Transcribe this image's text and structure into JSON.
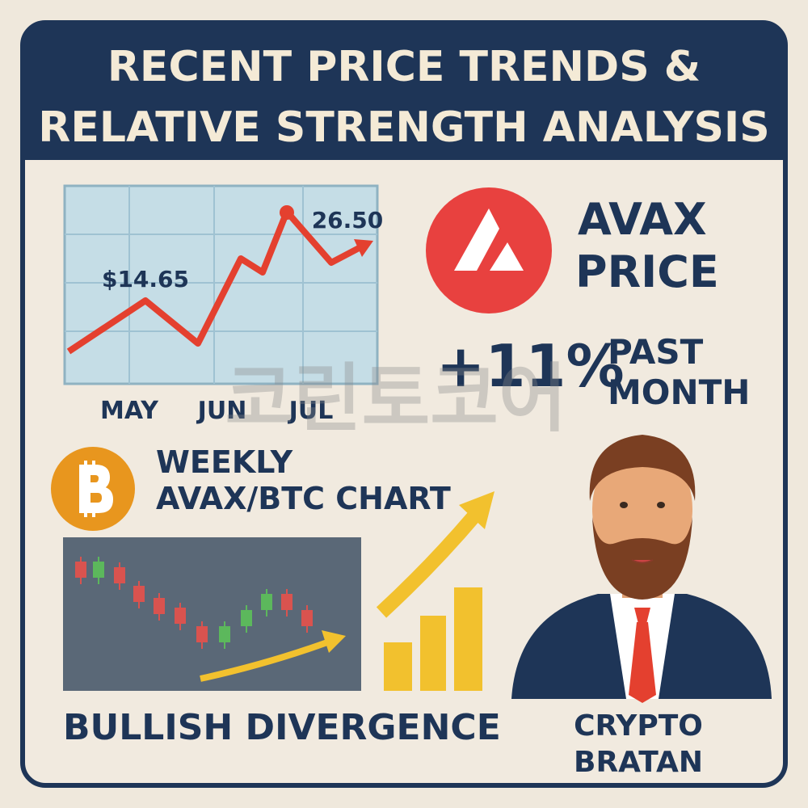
{
  "header": {
    "title_lines": [
      "RECENT PRICE TRENDS &",
      "RELATIVE STRENGTH ANALYSIS"
    ]
  },
  "price_chart": {
    "start_label": "$14.65",
    "peak_label": "26.50",
    "months": [
      "MAY",
      "JUN",
      "JUL"
    ]
  },
  "avax": {
    "title_lines": [
      "AVAX",
      "PRICE"
    ],
    "change": "+11%",
    "period_lines": [
      "PAST",
      "MONTH"
    ]
  },
  "btc_chart": {
    "title_lines": [
      "WEEKLY",
      "AVAX/BTC CHART"
    ],
    "caption": "BULLISH DIVERGENCE"
  },
  "person": {
    "name_lines": [
      "CRYPTO",
      "BRATAN"
    ]
  },
  "watermark": "코린토코어"
}
